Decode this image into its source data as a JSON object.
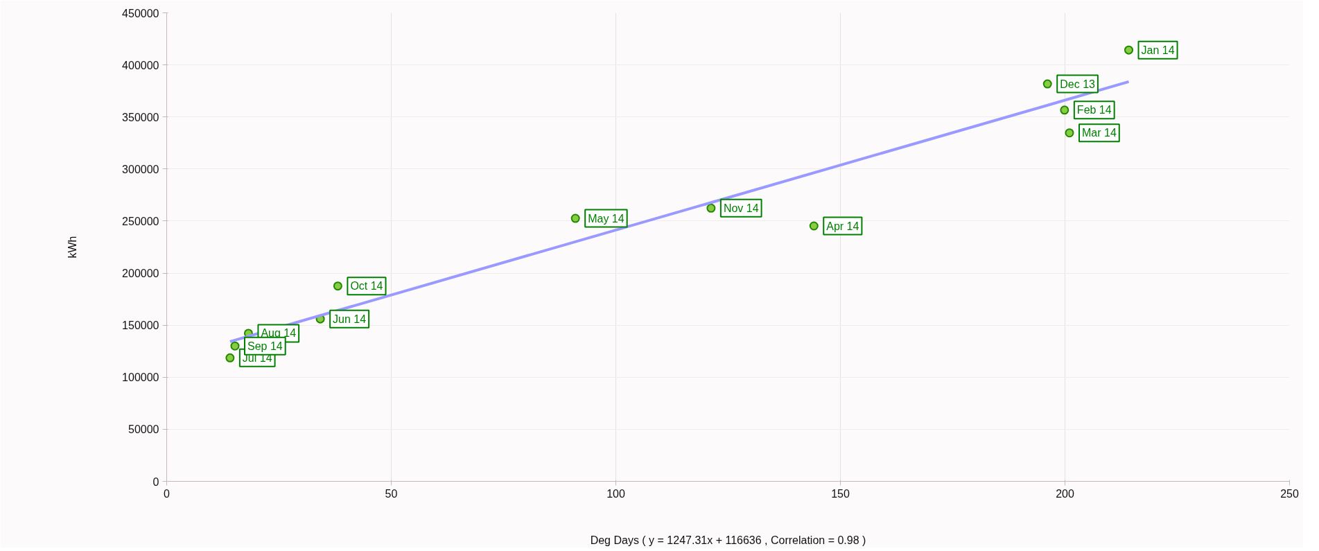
{
  "chart_data": {
    "type": "scatter",
    "xlabel": "Deg Days ( y = 1247.31x + 116636 , Correlation = 0.98 )",
    "ylabel": "kWh",
    "xlim": [
      0,
      250
    ],
    "xticks": [
      0,
      50,
      100,
      150,
      200,
      250
    ],
    "ylim": [
      0,
      450000
    ],
    "yticks": [
      0,
      50000,
      100000,
      150000,
      200000,
      250000,
      300000,
      350000,
      400000,
      450000
    ],
    "grid": true,
    "series": [
      {
        "marker": "circle",
        "color": "#88cc44",
        "x": [
          196.1,
          214.2,
          199.9,
          201,
          144.1,
          91,
          34.2,
          14.1,
          18.2,
          15.2,
          38.1,
          121.2
        ],
        "values": [
          381700,
          414300,
          356600,
          334700,
          245300,
          252600,
          156000,
          118600,
          142200,
          130000,
          187600,
          262400
        ]
      },
      {
        "type": "line",
        "marker": "none",
        "color": "#9999ff",
        "x": [
          14.1,
          214.2
        ],
        "values": [
          134200,
          383800
        ]
      }
    ],
    "annotations": [
      {
        "text": "Dec 13",
        "x": 196.1,
        "y": 381700
      },
      {
        "text": "Jan 14",
        "x": 214.2,
        "y": 414300
      },
      {
        "text": "Feb 14",
        "x": 199.9,
        "y": 356600
      },
      {
        "text": "Mar 14",
        "x": 201,
        "y": 334700
      },
      {
        "text": "Apr 14",
        "x": 144.1,
        "y": 245300
      },
      {
        "text": "May 14",
        "x": 91,
        "y": 252600
      },
      {
        "text": "Jun 14",
        "x": 34.2,
        "y": 156000
      },
      {
        "text": "Jul 14",
        "x": 14.1,
        "y": 118600
      },
      {
        "text": "Aug 14",
        "x": 18.2,
        "y": 142200
      },
      {
        "text": "Sep 14",
        "x": 15.2,
        "y": 130000
      },
      {
        "text": "Oct 14",
        "x": 38.1,
        "y": 187600
      },
      {
        "text": "Nov 14",
        "x": 121.2,
        "y": 262400
      }
    ]
  }
}
